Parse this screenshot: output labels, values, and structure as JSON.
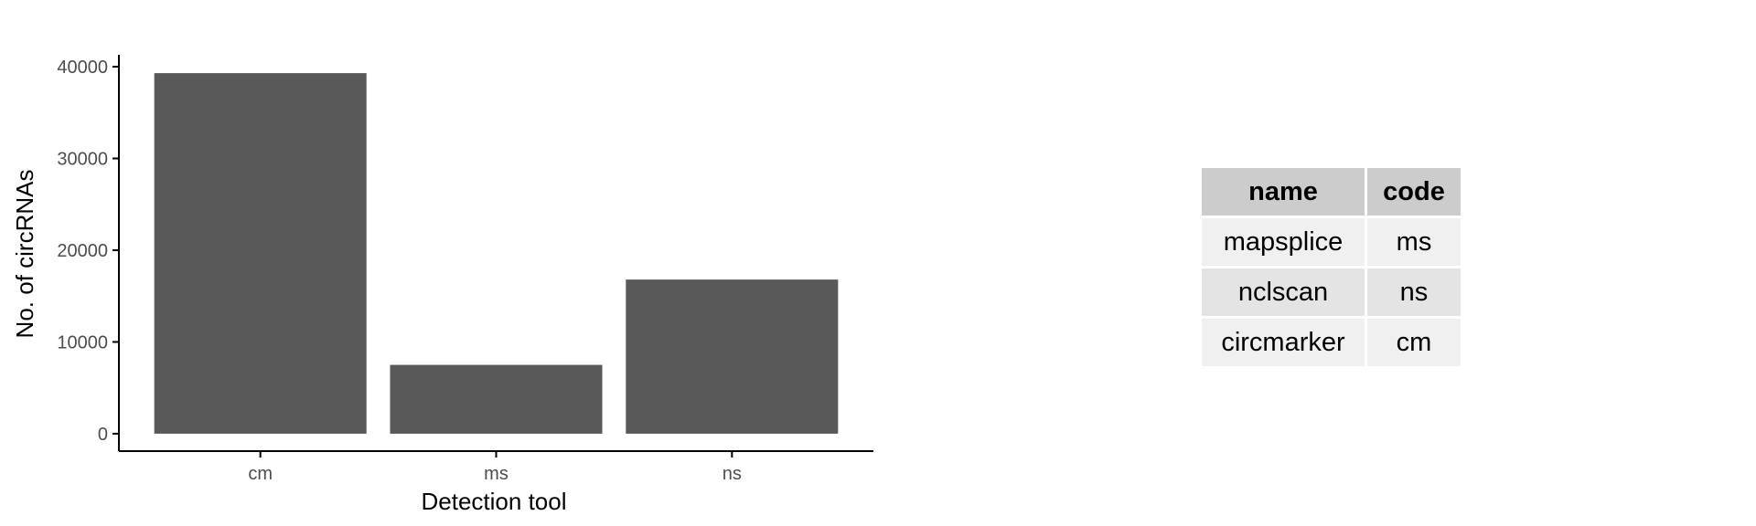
{
  "chart_data": {
    "type": "bar",
    "categories": [
      "cm",
      "ms",
      "ns"
    ],
    "values": [
      39300,
      7500,
      16800
    ],
    "xlabel": "Detection tool",
    "ylabel": "No. of circRNAs",
    "ylim": [
      -1900,
      41300
    ],
    "yticks": [
      0,
      10000,
      20000,
      30000,
      40000
    ],
    "grid": false,
    "colors": {
      "bar": "#595959",
      "axis": "#000000",
      "tick_label": "#4d4d4d"
    }
  },
  "table": {
    "headers": {
      "name": "name",
      "code": "code"
    },
    "rows": [
      {
        "name": "mapsplice",
        "code": "ms"
      },
      {
        "name": "nclscan",
        "code": "ns"
      },
      {
        "name": "circmarker",
        "code": "cm"
      }
    ]
  }
}
